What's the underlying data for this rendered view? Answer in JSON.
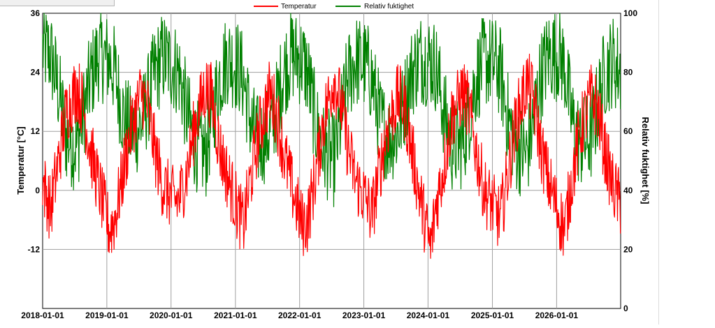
{
  "chart_data": {
    "type": "line",
    "legend": {
      "placement": "top-center"
    },
    "grid": true,
    "x_axis": {
      "type": "date",
      "range": [
        "2018-01-01",
        "2026-12-31"
      ],
      "ticks": [
        "2018-01-01",
        "2019-01-01",
        "2020-01-01",
        "2021-01-01",
        "2022-01-01",
        "2023-01-01",
        "2024-01-01",
        "2025-01-01",
        "2026-01-01"
      ]
    },
    "y_axis_left": {
      "label": "Temperatur [°C]",
      "range": [
        -24,
        36
      ],
      "ticks": [
        "36",
        "24",
        "12",
        "0",
        "-12"
      ]
    },
    "y_axis_right": {
      "label": "Relativ fuktighet [%]",
      "range": [
        0,
        100
      ],
      "ticks": [
        "100",
        "80",
        "60",
        "40",
        "20",
        "0"
      ]
    },
    "series": [
      {
        "name": "Temperatur",
        "axis": "left",
        "color": "#ff0000",
        "points": [
          [
            "2018-01-01",
            2
          ],
          [
            "2018-02-15",
            -4
          ],
          [
            "2018-04-01",
            6
          ],
          [
            "2018-05-15",
            16
          ],
          [
            "2018-07-15",
            21
          ],
          [
            "2018-08-20",
            17
          ],
          [
            "2018-10-01",
            8
          ],
          [
            "2018-11-15",
            1
          ],
          [
            "2019-01-15",
            -8
          ],
          [
            "2019-02-15",
            -6
          ],
          [
            "2019-04-01",
            3
          ],
          [
            "2019-05-15",
            12
          ],
          [
            "2019-07-15",
            20
          ],
          [
            "2019-08-20",
            17
          ],
          [
            "2019-10-01",
            8
          ],
          [
            "2019-11-15",
            1
          ],
          [
            "2020-01-15",
            -2
          ],
          [
            "2020-02-15",
            -2
          ],
          [
            "2020-04-01",
            4
          ],
          [
            "2020-05-15",
            13
          ],
          [
            "2020-07-15",
            21
          ],
          [
            "2020-08-20",
            19
          ],
          [
            "2020-10-01",
            9
          ],
          [
            "2020-11-15",
            3
          ],
          [
            "2021-01-15",
            -4
          ],
          [
            "2021-02-15",
            -7
          ],
          [
            "2021-04-01",
            3
          ],
          [
            "2021-05-15",
            12
          ],
          [
            "2021-07-15",
            20
          ],
          [
            "2021-08-20",
            16
          ],
          [
            "2021-10-01",
            8
          ],
          [
            "2021-11-15",
            1
          ],
          [
            "2022-01-15",
            -7
          ],
          [
            "2022-02-15",
            -6
          ],
          [
            "2022-04-01",
            3
          ],
          [
            "2022-05-15",
            14
          ],
          [
            "2022-07-15",
            23
          ],
          [
            "2022-08-20",
            18
          ],
          [
            "2022-10-01",
            9
          ],
          [
            "2022-11-15",
            2
          ],
          [
            "2023-01-15",
            -2
          ],
          [
            "2023-02-15",
            -5
          ],
          [
            "2023-04-01",
            4
          ],
          [
            "2023-05-15",
            13
          ],
          [
            "2023-07-15",
            19
          ],
          [
            "2023-08-20",
            17
          ],
          [
            "2023-10-01",
            8
          ],
          [
            "2023-11-15",
            -1
          ],
          [
            "2024-01-15",
            -12
          ],
          [
            "2024-02-15",
            -3
          ],
          [
            "2024-04-01",
            5
          ],
          [
            "2024-05-15",
            15
          ],
          [
            "2024-07-15",
            20
          ],
          [
            "2024-08-20",
            17
          ],
          [
            "2024-10-01",
            8
          ],
          [
            "2024-11-15",
            0
          ],
          [
            "2025-01-15",
            -4
          ],
          [
            "2025-02-15",
            -6
          ],
          [
            "2025-04-01",
            4
          ],
          [
            "2025-05-15",
            14
          ],
          [
            "2025-07-15",
            22
          ],
          [
            "2025-08-20",
            19
          ],
          [
            "2025-10-01",
            9
          ],
          [
            "2025-11-15",
            2
          ],
          [
            "2026-01-15",
            -5
          ],
          [
            "2026-02-15",
            -8
          ],
          [
            "2026-04-01",
            3
          ],
          [
            "2026-05-15",
            12
          ],
          [
            "2026-07-15",
            19
          ],
          [
            "2026-08-20",
            17
          ],
          [
            "2026-10-01",
            8
          ],
          [
            "2026-11-15",
            1
          ],
          [
            "2026-12-31",
            -3
          ]
        ]
      },
      {
        "name": "Relativ fuktighet",
        "axis": "right",
        "color": "#008000",
        "points": [
          [
            "2018-01-01",
            88
          ],
          [
            "2018-02-15",
            86
          ],
          [
            "2018-04-01",
            74
          ],
          [
            "2018-05-15",
            58
          ],
          [
            "2018-07-15",
            55
          ],
          [
            "2018-08-20",
            66
          ],
          [
            "2018-10-01",
            78
          ],
          [
            "2018-11-15",
            86
          ],
          [
            "2019-01-15",
            84
          ],
          [
            "2019-02-15",
            80
          ],
          [
            "2019-04-01",
            66
          ],
          [
            "2019-05-15",
            60
          ],
          [
            "2019-07-15",
            62
          ],
          [
            "2019-08-20",
            70
          ],
          [
            "2019-10-01",
            80
          ],
          [
            "2019-11-15",
            85
          ],
          [
            "2020-01-15",
            82
          ],
          [
            "2020-02-15",
            80
          ],
          [
            "2020-04-01",
            66
          ],
          [
            "2020-05-15",
            56
          ],
          [
            "2020-07-15",
            52
          ],
          [
            "2020-08-20",
            64
          ],
          [
            "2020-10-01",
            78
          ],
          [
            "2020-11-15",
            85
          ],
          [
            "2021-01-15",
            82
          ],
          [
            "2021-02-15",
            78
          ],
          [
            "2021-04-01",
            62
          ],
          [
            "2021-05-15",
            56
          ],
          [
            "2021-07-15",
            60
          ],
          [
            "2021-08-20",
            68
          ],
          [
            "2021-10-01",
            80
          ],
          [
            "2021-11-15",
            86
          ],
          [
            "2022-01-15",
            84
          ],
          [
            "2022-02-15",
            80
          ],
          [
            "2022-04-01",
            63
          ],
          [
            "2022-05-15",
            54
          ],
          [
            "2022-07-15",
            50
          ],
          [
            "2022-08-20",
            62
          ],
          [
            "2022-10-01",
            78
          ],
          [
            "2022-11-15",
            84
          ],
          [
            "2023-01-15",
            82
          ],
          [
            "2023-02-15",
            78
          ],
          [
            "2023-04-01",
            64
          ],
          [
            "2023-05-15",
            58
          ],
          [
            "2023-07-15",
            60
          ],
          [
            "2023-08-20",
            70
          ],
          [
            "2023-10-01",
            80
          ],
          [
            "2023-11-15",
            85
          ],
          [
            "2024-01-15",
            84
          ],
          [
            "2024-02-15",
            82
          ],
          [
            "2024-04-01",
            66
          ],
          [
            "2024-05-15",
            55
          ],
          [
            "2024-07-15",
            56
          ],
          [
            "2024-08-20",
            65
          ],
          [
            "2024-10-01",
            78
          ],
          [
            "2024-11-15",
            84
          ],
          [
            "2025-01-15",
            83
          ],
          [
            "2025-02-15",
            80
          ],
          [
            "2025-04-01",
            64
          ],
          [
            "2025-05-15",
            55
          ],
          [
            "2025-07-15",
            52
          ],
          [
            "2025-08-20",
            63
          ],
          [
            "2025-10-01",
            78
          ],
          [
            "2025-11-15",
            86
          ],
          [
            "2026-01-15",
            86
          ],
          [
            "2026-02-15",
            82
          ],
          [
            "2026-04-01",
            63
          ],
          [
            "2026-05-15",
            56
          ],
          [
            "2026-07-15",
            58
          ],
          [
            "2026-08-20",
            68
          ],
          [
            "2026-10-01",
            80
          ],
          [
            "2026-11-15",
            84
          ],
          [
            "2026-12-31",
            80
          ]
        ]
      }
    ]
  }
}
